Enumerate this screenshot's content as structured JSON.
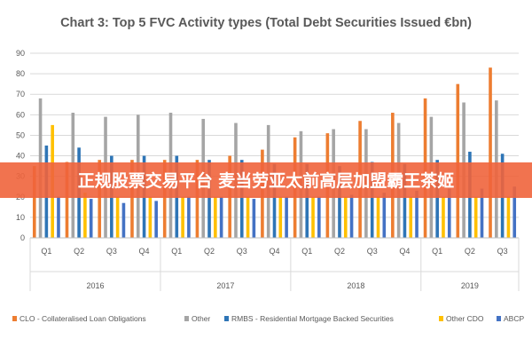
{
  "chart_data": {
    "type": "bar",
    "title": "Chart 3: Top 5 FVC Activity types (Total Debt Securities Issued €bn)",
    "xlabel": "",
    "ylabel": "",
    "ylim": [
      0,
      90
    ],
    "y_ticks": [
      "0",
      "10",
      "20",
      "30",
      "40",
      "50",
      "60",
      "70",
      "80",
      "90"
    ],
    "grid": true,
    "legend_position": "bottom",
    "categories": [
      "Q1",
      "Q2",
      "Q3",
      "Q4",
      "Q1",
      "Q2",
      "Q3",
      "Q4",
      "Q1",
      "Q2",
      "Q3",
      "Q4",
      "Q1",
      "Q2",
      "Q3"
    ],
    "groups": [
      {
        "label": "2016",
        "count": 4
      },
      {
        "label": "2017",
        "count": 4
      },
      {
        "label": "2018",
        "count": 4
      },
      {
        "label": "2019",
        "count": 3
      }
    ],
    "series": [
      {
        "name": "CLO - Collateralised Loan Obligations",
        "color": "#ED7D31",
        "values": [
          35,
          37,
          38,
          38,
          38,
          38,
          40,
          43,
          49,
          51,
          57,
          61,
          68,
          75,
          83
        ]
      },
      {
        "name": "Other",
        "color": "#A5A5A5",
        "values": [
          68,
          61,
          59,
          60,
          61,
          58,
          56,
          55,
          52,
          53,
          53,
          56,
          59,
          66,
          67
        ]
      },
      {
        "name": "RMBS - Residential Mortgage Backed Securities",
        "color": "#2E75B6",
        "values": [
          45,
          44,
          40,
          40,
          40,
          38,
          38,
          36,
          36,
          35,
          37,
          36,
          38,
          42,
          41
        ]
      },
      {
        "name": "Other CDO",
        "color": "#FFC000",
        "values": [
          55,
          22,
          20,
          20,
          20,
          20,
          20,
          20,
          20,
          20,
          20,
          20,
          20,
          20,
          20
        ]
      },
      {
        "name": "ABCP",
        "color": "#4472C4",
        "values": [
          20,
          19,
          17,
          18,
          20,
          20,
          19,
          20,
          20,
          21,
          22,
          23,
          24,
          24,
          25
        ]
      }
    ]
  },
  "banner": {
    "text": "正规股票交易平台 麦当劳亚太前高层加盟霸王茶姬",
    "color": "#F0643C"
  }
}
